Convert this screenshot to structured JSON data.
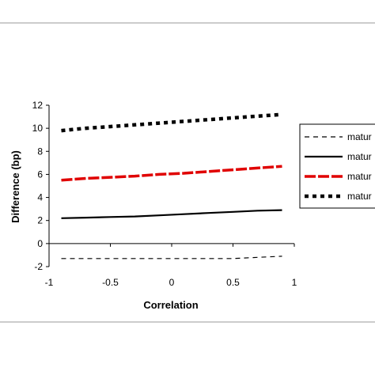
{
  "chart_data": {
    "type": "line",
    "title": "",
    "xlabel": "Correlation",
    "ylabel": "Difference (bp)",
    "xlim": [
      -1,
      1
    ],
    "ylim": [
      -2,
      12
    ],
    "x_ticks": [
      -1,
      -0.5,
      0,
      0.5,
      1
    ],
    "x_tick_labels": [
      "-1",
      "-0.5",
      "0",
      "0.5",
      "1"
    ],
    "y_ticks": [
      -2,
      0,
      2,
      4,
      6,
      8,
      10,
      12
    ],
    "y_tick_labels": [
      "-2",
      "0",
      "2",
      "4",
      "6",
      "8",
      "10",
      "12"
    ],
    "grid": false,
    "legend_position": "right",
    "series": [
      {
        "name": "matur",
        "color": "#000000",
        "line_style": "dash",
        "x": [
          -0.9,
          -0.7,
          -0.5,
          -0.3,
          -0.1,
          0.1,
          0.3,
          0.5,
          0.7,
          0.9
        ],
        "values": [
          -1.3,
          -1.3,
          -1.3,
          -1.3,
          -1.3,
          -1.3,
          -1.3,
          -1.3,
          -1.2,
          -1.1
        ]
      },
      {
        "name": "matur",
        "color": "#000000",
        "line_style": "solid",
        "x": [
          -0.9,
          -0.7,
          -0.5,
          -0.3,
          -0.1,
          0.1,
          0.3,
          0.5,
          0.7,
          0.9
        ],
        "values": [
          2.2,
          2.25,
          2.3,
          2.35,
          2.45,
          2.55,
          2.65,
          2.75,
          2.85,
          2.9
        ]
      },
      {
        "name": "matur",
        "color": "#e00000",
        "line_style": "dash-thick",
        "x": [
          -0.9,
          -0.7,
          -0.5,
          -0.3,
          -0.1,
          0.1,
          0.3,
          0.5,
          0.7,
          0.9
        ],
        "values": [
          5.5,
          5.65,
          5.75,
          5.85,
          6.0,
          6.1,
          6.25,
          6.4,
          6.55,
          6.7
        ]
      },
      {
        "name": "matur",
        "color": "#000000",
        "line_style": "dot-thick",
        "x": [
          -0.9,
          -0.7,
          -0.5,
          -0.3,
          -0.1,
          0.1,
          0.3,
          0.5,
          0.7,
          0.9
        ],
        "values": [
          9.8,
          10.0,
          10.15,
          10.3,
          10.45,
          10.6,
          10.75,
          10.9,
          11.05,
          11.2
        ]
      }
    ]
  }
}
